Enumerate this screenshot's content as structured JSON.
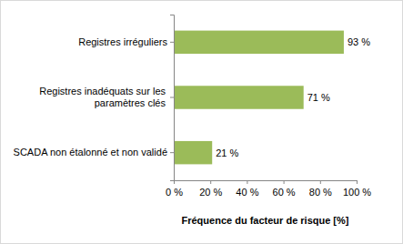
{
  "chart_data": {
    "type": "bar",
    "orientation": "horizontal",
    "categories": [
      "Registres irréguliers",
      "Registres inadéquats sur les paramètres clés",
      "SCADA non étalonné et non validé"
    ],
    "values": [
      93,
      71,
      21
    ],
    "value_labels": [
      "93 %",
      "71 %",
      "21 %"
    ],
    "data_labels": true,
    "color": "#9bbb59",
    "x_label": "Fréquence du facteur de risque [%]",
    "xlim": [
      0,
      100
    ],
    "xticks": [
      {
        "value": 0,
        "label": "0 %"
      },
      {
        "value": 20,
        "label": "20 %"
      },
      {
        "value": 40,
        "label": "40 %"
      },
      {
        "value": 60,
        "label": "60 %"
      },
      {
        "value": 80,
        "label": "80 %"
      },
      {
        "value": 100,
        "label": "100 %"
      }
    ],
    "grid": false
  }
}
